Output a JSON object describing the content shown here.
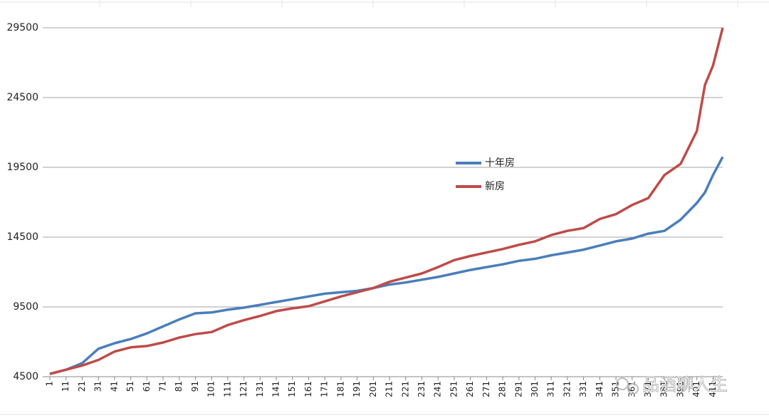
{
  "chart_data": {
    "type": "line",
    "x": [
      1,
      11,
      21,
      31,
      41,
      51,
      61,
      71,
      81,
      91,
      101,
      111,
      121,
      131,
      141,
      151,
      161,
      171,
      181,
      191,
      201,
      211,
      221,
      231,
      241,
      251,
      261,
      271,
      281,
      291,
      301,
      311,
      321,
      331,
      341,
      351,
      361,
      371,
      381,
      391,
      401,
      406,
      411,
      417
    ],
    "series": [
      {
        "name": "十年房",
        "color": "#4a7ebb",
        "values": [
          4700,
          5000,
          5470,
          6500,
          6900,
          7200,
          7600,
          8100,
          8600,
          9040,
          9100,
          9300,
          9450,
          9650,
          9850,
          10050,
          10250,
          10450,
          10550,
          10650,
          10850,
          11100,
          11250,
          11450,
          11650,
          11900,
          12150,
          12350,
          12550,
          12800,
          12950,
          13200,
          13400,
          13600,
          13900,
          14200,
          14400,
          14750,
          14950,
          15750,
          16950,
          17700,
          18950,
          20250
        ]
      },
      {
        "name": "新房",
        "color": "#be4b48",
        "values": [
          4700,
          5000,
          5300,
          5700,
          6300,
          6600,
          6700,
          6950,
          7300,
          7550,
          7700,
          8200,
          8550,
          8850,
          9200,
          9400,
          9550,
          9900,
          10250,
          10550,
          10850,
          11300,
          11600,
          11900,
          12350,
          12850,
          13150,
          13400,
          13650,
          13950,
          14200,
          14650,
          14950,
          15150,
          15800,
          16150,
          16800,
          17300,
          18950,
          19750,
          22100,
          25400,
          26800,
          29500
        ]
      }
    ],
    "xlim": [
      1,
      417
    ],
    "xticks": [
      1,
      11,
      21,
      31,
      41,
      51,
      61,
      71,
      81,
      91,
      101,
      111,
      121,
      131,
      141,
      151,
      161,
      171,
      181,
      191,
      201,
      211,
      221,
      231,
      241,
      251,
      261,
      271,
      281,
      291,
      301,
      311,
      321,
      331,
      341,
      351,
      361,
      371,
      381,
      391,
      401,
      411
    ],
    "ylim": [
      4500,
      29500
    ],
    "yticks": [
      4500,
      9500,
      14500,
      19500,
      24500,
      29500
    ],
    "grid": true
  },
  "watermark": "品酒聊人生"
}
